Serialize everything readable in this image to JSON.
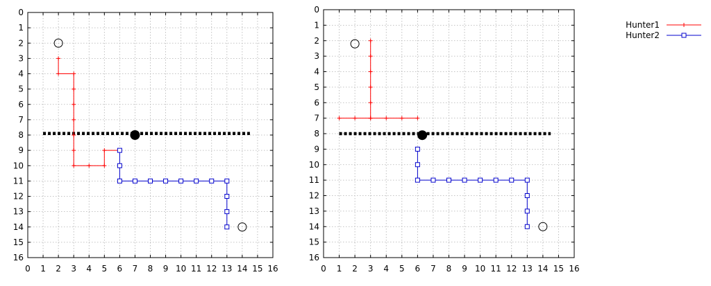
{
  "chart_data": [
    {
      "type": "line",
      "panel": "left",
      "xlim": [
        0,
        16
      ],
      "ylim": [
        0,
        16
      ],
      "y_inverted": true,
      "grid": true,
      "x_ticks": [
        "0",
        "1",
        "2",
        "3",
        "4",
        "5",
        "6",
        "7",
        "8",
        "9",
        "10",
        "11",
        "12",
        "13",
        "14",
        "15",
        "16"
      ],
      "y_ticks": [
        "0",
        "1",
        "2",
        "3",
        "4",
        "5",
        "6",
        "7",
        "8",
        "9",
        "10",
        "11",
        "12",
        "13",
        "14",
        "15",
        "16"
      ],
      "wall": {
        "x": [
          1,
          14.5
        ],
        "y": 7.9
      },
      "target": {
        "x": 7,
        "y": 8
      },
      "start_markers": [
        {
          "x": 2,
          "y": 2
        },
        {
          "x": 14,
          "y": 14
        }
      ],
      "series": [
        {
          "name": "Hunter1",
          "color": "#ff0000",
          "marker": "plus",
          "points": [
            [
              2,
              3
            ],
            [
              2,
              4
            ],
            [
              3,
              4
            ],
            [
              3,
              5
            ],
            [
              3,
              6
            ],
            [
              3,
              7
            ],
            [
              3,
              8
            ],
            [
              3,
              9
            ],
            [
              3,
              10
            ],
            [
              4,
              10
            ],
            [
              5,
              10
            ],
            [
              5,
              9
            ],
            [
              6,
              9
            ]
          ]
        },
        {
          "name": "Hunter2",
          "color": "#0000cc",
          "marker": "square",
          "points": [
            [
              6,
              9
            ],
            [
              6,
              10
            ],
            [
              6,
              11
            ],
            [
              7,
              11
            ],
            [
              8,
              11
            ],
            [
              9,
              11
            ],
            [
              10,
              11
            ],
            [
              11,
              11
            ],
            [
              12,
              11
            ],
            [
              13,
              11
            ],
            [
              13,
              12
            ],
            [
              13,
              13
            ],
            [
              13,
              14
            ]
          ]
        }
      ]
    },
    {
      "type": "line",
      "panel": "right",
      "xlim": [
        0,
        16
      ],
      "ylim": [
        0,
        16
      ],
      "y_inverted": true,
      "grid": true,
      "x_ticks": [
        "0",
        "1",
        "2",
        "3",
        "4",
        "5",
        "6",
        "7",
        "8",
        "9",
        "10",
        "11",
        "12",
        "13",
        "14",
        "15",
        "16"
      ],
      "y_ticks": [
        "0",
        "1",
        "2",
        "3",
        "4",
        "5",
        "6",
        "7",
        "8",
        "9",
        "10",
        "11",
        "12",
        "13",
        "14",
        "15",
        "16"
      ],
      "wall": {
        "x": [
          1,
          14.5
        ],
        "y": 8
      },
      "target": {
        "x": 6.3,
        "y": 8.1
      },
      "start_markers": [
        {
          "x": 2,
          "y": 2.2
        },
        {
          "x": 14,
          "y": 14
        }
      ],
      "series": [
        {
          "name": "Hunter1",
          "color": "#ff0000",
          "marker": "plus",
          "points": [
            [
              3,
              2
            ],
            [
              3,
              3
            ],
            [
              3,
              4
            ],
            [
              3,
              5
            ],
            [
              3,
              6
            ],
            [
              3,
              7
            ],
            [
              2,
              7
            ],
            [
              1,
              7
            ],
            [
              3,
              7
            ],
            [
              4,
              7
            ],
            [
              5,
              7
            ],
            [
              6,
              7
            ]
          ]
        },
        {
          "name": "Hunter2",
          "color": "#0000cc",
          "marker": "square",
          "points": [
            [
              6,
              9
            ],
            [
              6,
              10
            ],
            [
              6,
              11
            ],
            [
              7,
              11
            ],
            [
              8,
              11
            ],
            [
              9,
              11
            ],
            [
              10,
              11
            ],
            [
              11,
              11
            ],
            [
              12,
              11
            ],
            [
              13,
              11
            ],
            [
              13,
              12
            ],
            [
              13,
              13
            ],
            [
              13,
              14
            ]
          ]
        }
      ]
    }
  ],
  "legend": {
    "placement": "top-right",
    "entries": [
      {
        "label": "Hunter1",
        "color": "#ff0000",
        "marker": "plus"
      },
      {
        "label": "Hunter2",
        "color": "#0000cc",
        "marker": "square"
      }
    ]
  }
}
